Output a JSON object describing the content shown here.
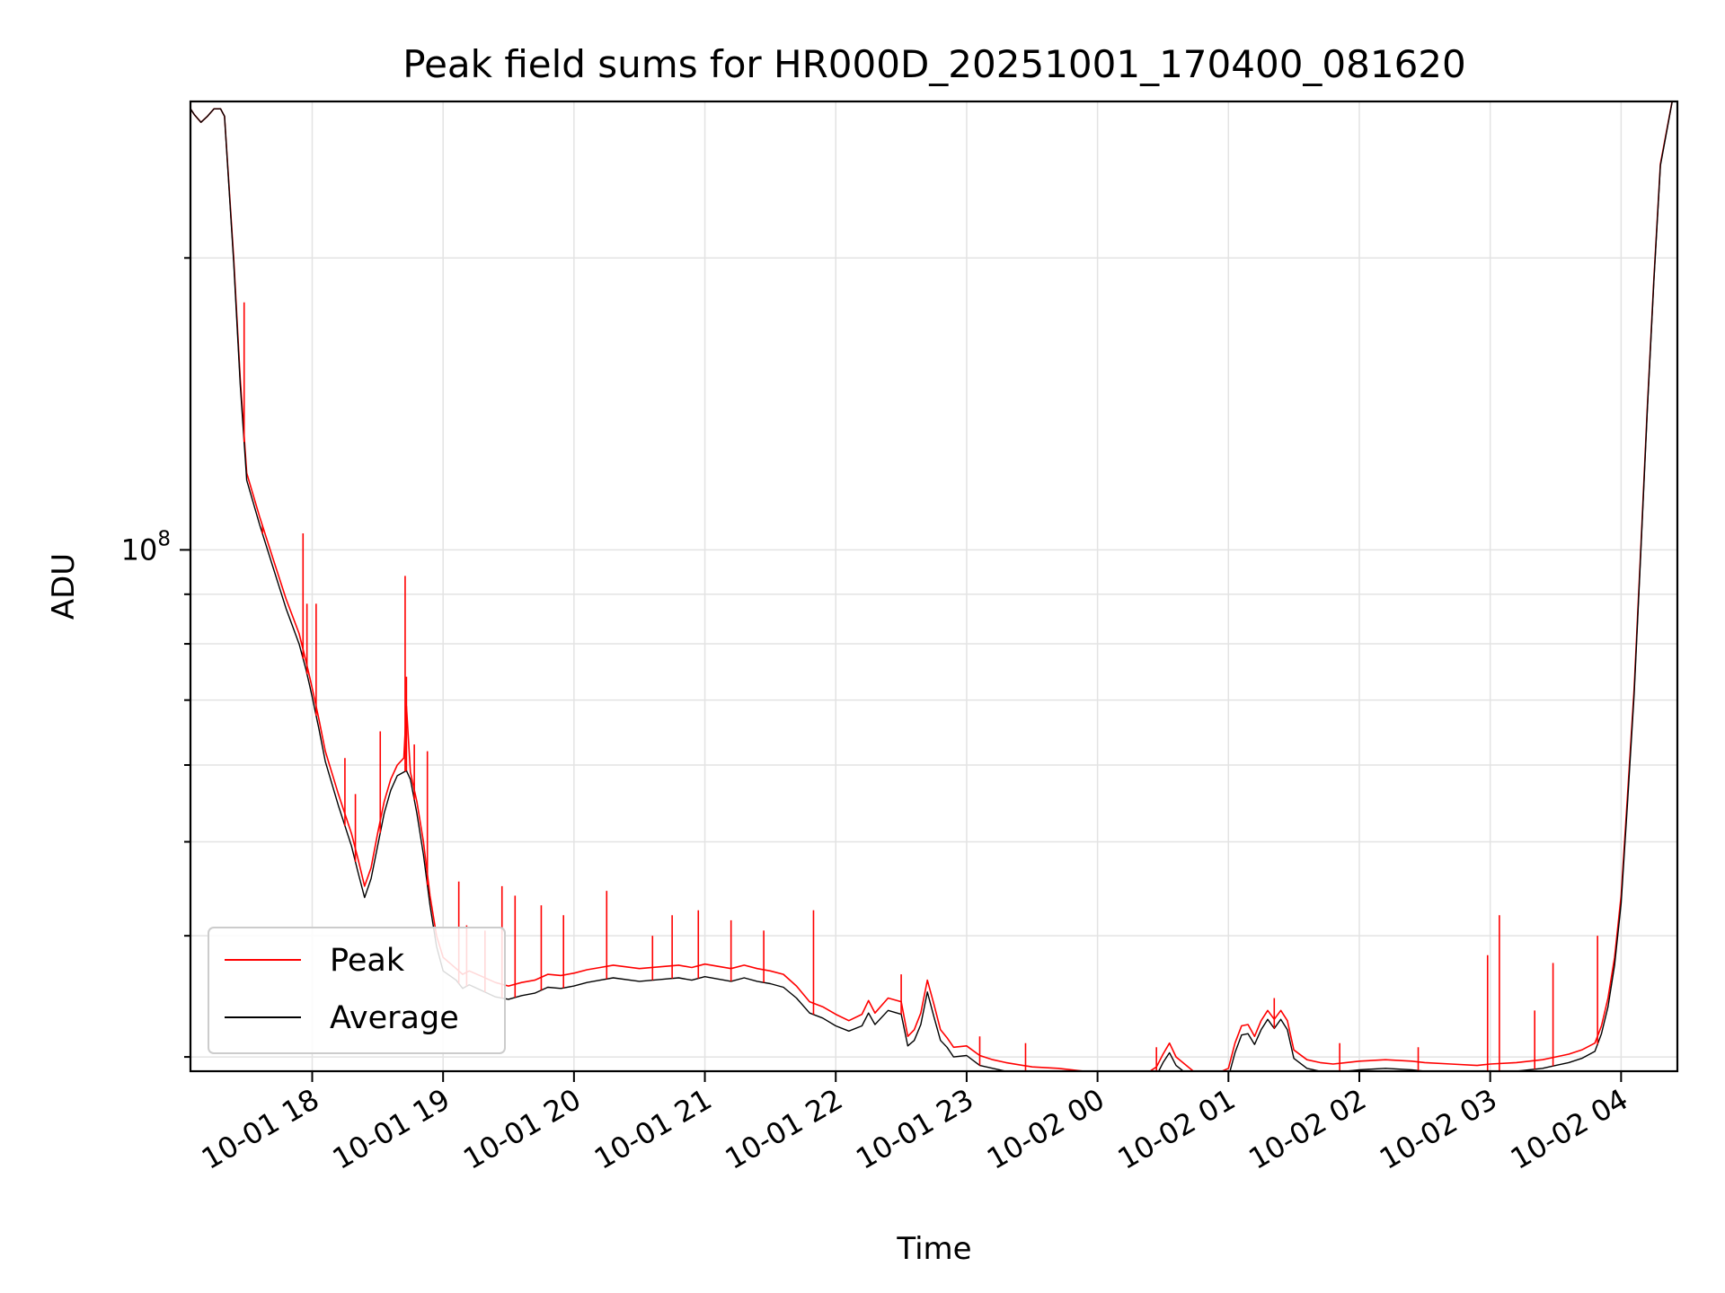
{
  "chart_data": {
    "type": "line",
    "title": "Peak field sums for HR000D_20251001_170400_081620",
    "xlabel": "Time",
    "ylabel": "ADU",
    "yscale": "log",
    "grid": true,
    "legend_position": "lower-left",
    "xlim": [
      17.07,
      28.43
    ],
    "ylim": [
      29000000,
      290000000
    ],
    "x_unit": "hours since 2025-10-01 00:00",
    "x_ticks": [
      {
        "x": 18,
        "label": "10-01 18"
      },
      {
        "x": 19,
        "label": "10-01 19"
      },
      {
        "x": 20,
        "label": "10-01 20"
      },
      {
        "x": 21,
        "label": "10-01 21"
      },
      {
        "x": 22,
        "label": "10-01 22"
      },
      {
        "x": 23,
        "label": "10-01 23"
      },
      {
        "x": 24,
        "label": "10-02 00"
      },
      {
        "x": 25,
        "label": "10-02 01"
      },
      {
        "x": 26,
        "label": "10-02 02"
      },
      {
        "x": 27,
        "label": "10-02 03"
      },
      {
        "x": 28,
        "label": "10-02 04"
      }
    ],
    "y_major_tick": {
      "value": 100000000,
      "base": "10",
      "exp": "8"
    },
    "series": [
      {
        "name": "Peak",
        "color": "#ff0000",
        "x": [
          17.07,
          17.1,
          17.15,
          17.2,
          17.25,
          17.3,
          17.33,
          17.4,
          17.45,
          17.5,
          17.6,
          17.7,
          17.8,
          17.9,
          17.95,
          17.98,
          18.0,
          18.05,
          18.1,
          18.2,
          18.3,
          18.35,
          18.4,
          18.45,
          18.5,
          18.55,
          18.6,
          18.65,
          18.7,
          18.72,
          18.75,
          18.8,
          18.85,
          18.9,
          18.95,
          19.0,
          19.1,
          19.15,
          19.2,
          19.3,
          19.4,
          19.5,
          19.6,
          19.7,
          19.8,
          19.9,
          20.0,
          20.1,
          20.2,
          20.3,
          20.5,
          20.7,
          20.8,
          20.9,
          21.0,
          21.2,
          21.3,
          21.4,
          21.5,
          21.6,
          21.7,
          21.8,
          21.9,
          22.0,
          22.1,
          22.2,
          22.25,
          22.3,
          22.4,
          22.5,
          22.55,
          22.6,
          22.65,
          22.7,
          22.75,
          22.8,
          22.85,
          22.9,
          23.0,
          23.1,
          23.2,
          23.3,
          23.5,
          23.7,
          23.9,
          24.1,
          24.2,
          24.3,
          24.4,
          24.45,
          24.5,
          24.55,
          24.6,
          24.8,
          24.9,
          25.0,
          25.05,
          25.1,
          25.15,
          25.2,
          25.25,
          25.3,
          25.35,
          25.4,
          25.45,
          25.5,
          25.6,
          25.7,
          25.8,
          25.9,
          26.0,
          26.2,
          26.4,
          26.5,
          26.7,
          26.9,
          27.0,
          27.2,
          27.4,
          27.5,
          27.6,
          27.7,
          27.8,
          27.85,
          27.9,
          27.95,
          28.0,
          28.05,
          28.1,
          28.15,
          28.2,
          28.25,
          28.3,
          28.43
        ],
        "values": [
          285000000,
          281000000,
          276000000,
          280000000,
          285000000,
          285000000,
          280000000,
          200000000,
          150000000,
          120000000,
          108000000,
          98000000,
          89000000,
          82000000,
          77000000,
          74000000,
          72000000,
          67000000,
          62000000,
          56000000,
          51000000,
          48000000,
          45000000,
          47000000,
          51000000,
          55000000,
          58000000,
          60000000,
          61000000,
          69000000,
          59000000,
          55000000,
          50000000,
          44000000,
          40000000,
          38000000,
          37000000,
          36500000,
          36800000,
          36300000,
          35800000,
          35500000,
          35800000,
          36000000,
          36500000,
          36400000,
          36600000,
          36900000,
          37100000,
          37300000,
          37000000,
          37200000,
          37300000,
          37100000,
          37400000,
          37000000,
          37300000,
          37000000,
          36800000,
          36500000,
          35500000,
          34200000,
          33800000,
          33200000,
          32700000,
          33200000,
          34300000,
          33300000,
          34500000,
          34200000,
          31500000,
          32000000,
          33300000,
          36000000,
          34000000,
          32000000,
          31400000,
          30700000,
          30800000,
          30100000,
          29800000,
          29600000,
          29300000,
          29200000,
          29000000,
          28800000,
          28700000,
          28900000,
          29000000,
          29300000,
          30200000,
          31000000,
          30000000,
          28500000,
          28800000,
          29200000,
          31000000,
          32300000,
          32400000,
          31500000,
          32700000,
          33500000,
          32800000,
          33500000,
          32700000,
          30500000,
          29800000,
          29600000,
          29500000,
          29600000,
          29700000,
          29800000,
          29700000,
          29600000,
          29500000,
          29400000,
          29500000,
          29600000,
          29800000,
          30000000,
          30200000,
          30500000,
          31000000,
          32300000,
          34500000,
          38000000,
          44000000,
          56000000,
          72000000,
          100000000,
          140000000,
          190000000,
          250000000,
          310000000
        ]
      },
      {
        "name": "Average",
        "color": "#000000",
        "x": [
          17.07,
          17.1,
          17.15,
          17.2,
          17.25,
          17.3,
          17.33,
          17.4,
          17.45,
          17.5,
          17.6,
          17.7,
          17.8,
          17.9,
          17.95,
          17.98,
          18.0,
          18.05,
          18.1,
          18.2,
          18.3,
          18.35,
          18.4,
          18.45,
          18.5,
          18.55,
          18.6,
          18.65,
          18.7,
          18.72,
          18.75,
          18.8,
          18.85,
          18.9,
          18.95,
          19.0,
          19.1,
          19.15,
          19.2,
          19.3,
          19.4,
          19.5,
          19.6,
          19.7,
          19.8,
          19.9,
          20.0,
          20.1,
          20.2,
          20.3,
          20.5,
          20.7,
          20.8,
          20.9,
          21.0,
          21.2,
          21.3,
          21.4,
          21.5,
          21.6,
          21.7,
          21.8,
          21.9,
          22.0,
          22.1,
          22.2,
          22.25,
          22.3,
          22.4,
          22.5,
          22.55,
          22.6,
          22.65,
          22.7,
          22.75,
          22.8,
          22.85,
          22.9,
          23.0,
          23.1,
          23.2,
          23.3,
          23.5,
          23.7,
          23.9,
          24.1,
          24.2,
          24.3,
          24.4,
          24.45,
          24.5,
          24.55,
          24.6,
          24.8,
          24.9,
          25.0,
          25.05,
          25.1,
          25.15,
          25.2,
          25.25,
          25.3,
          25.35,
          25.4,
          25.45,
          25.5,
          25.6,
          25.7,
          25.8,
          25.9,
          26.0,
          26.2,
          26.4,
          26.5,
          26.7,
          26.9,
          27.0,
          27.2,
          27.4,
          27.5,
          27.6,
          27.7,
          27.8,
          27.85,
          27.9,
          27.95,
          28.0,
          28.05,
          28.1,
          28.15,
          28.2,
          28.25,
          28.3,
          28.43
        ],
        "values": [
          285000000,
          281000000,
          276000000,
          280000000,
          285000000,
          285000000,
          280000000,
          198000000,
          148000000,
          118000000,
          106000000,
          96000000,
          87000000,
          80000000,
          75500000,
          72500000,
          70500000,
          65500000,
          60500000,
          54500000,
          49500000,
          46500000,
          43800000,
          45800000,
          49500000,
          53500000,
          56500000,
          58500000,
          59000000,
          59200000,
          58000000,
          53500000,
          48500000,
          43000000,
          39000000,
          36800000,
          36000000,
          35300000,
          35600000,
          35100000,
          34600000,
          34400000,
          34700000,
          34900000,
          35400000,
          35300000,
          35500000,
          35800000,
          36000000,
          36200000,
          35900000,
          36100000,
          36200000,
          36000000,
          36300000,
          35900000,
          36200000,
          35900000,
          35700000,
          35400000,
          34500000,
          33300000,
          32900000,
          32300000,
          31900000,
          32300000,
          33300000,
          32400000,
          33500000,
          33200000,
          30800000,
          31200000,
          32400000,
          35000000,
          33000000,
          31200000,
          30700000,
          30000000,
          30100000,
          29400000,
          29200000,
          29000000,
          28700000,
          28600000,
          28400000,
          28200000,
          28100000,
          28300000,
          28400000,
          28700000,
          29600000,
          30300000,
          29400000,
          28000000,
          28200000,
          28600000,
          30300000,
          31600000,
          31700000,
          30900000,
          32000000,
          32800000,
          32100000,
          32800000,
          32000000,
          29900000,
          29200000,
          29000000,
          28900000,
          29000000,
          29100000,
          29200000,
          29100000,
          29000000,
          28900000,
          28800000,
          28900000,
          29000000,
          29200000,
          29400000,
          29600000,
          29900000,
          30400000,
          31700000,
          33800000,
          37300000,
          43200000,
          55000000,
          71000000,
          99000000,
          139000000,
          189000000,
          249000000,
          310000000
        ]
      }
    ],
    "spikes": [
      {
        "x": 17.48,
        "top": 180000000
      },
      {
        "x": 17.62,
        "top": 106000000
      },
      {
        "x": 17.93,
        "top": 104000000
      },
      {
        "x": 17.96,
        "top": 88000000
      },
      {
        "x": 18.03,
        "top": 88000000
      },
      {
        "x": 18.25,
        "top": 61000000
      },
      {
        "x": 18.33,
        "top": 56000000
      },
      {
        "x": 18.52,
        "top": 65000000
      },
      {
        "x": 18.71,
        "top": 94000000
      },
      {
        "x": 18.72,
        "top": 74000000
      },
      {
        "x": 18.78,
        "top": 63000000
      },
      {
        "x": 18.88,
        "top": 62000000
      },
      {
        "x": 19.12,
        "top": 45500000
      },
      {
        "x": 19.18,
        "top": 41000000
      },
      {
        "x": 19.32,
        "top": 40500000
      },
      {
        "x": 19.45,
        "top": 45000000
      },
      {
        "x": 19.55,
        "top": 44000000
      },
      {
        "x": 19.75,
        "top": 43000000
      },
      {
        "x": 19.92,
        "top": 42000000
      },
      {
        "x": 20.25,
        "top": 44500000
      },
      {
        "x": 20.6,
        "top": 40000000
      },
      {
        "x": 20.75,
        "top": 42000000
      },
      {
        "x": 20.95,
        "top": 42500000
      },
      {
        "x": 21.2,
        "top": 41500000
      },
      {
        "x": 21.45,
        "top": 40500000
      },
      {
        "x": 21.83,
        "top": 42500000
      },
      {
        "x": 22.5,
        "top": 36500000
      },
      {
        "x": 23.1,
        "top": 31500000
      },
      {
        "x": 23.45,
        "top": 31000000
      },
      {
        "x": 24.45,
        "top": 30700000
      },
      {
        "x": 25.35,
        "top": 34500000
      },
      {
        "x": 25.85,
        "top": 31000000
      },
      {
        "x": 26.45,
        "top": 30700000
      },
      {
        "x": 26.98,
        "top": 38200000
      },
      {
        "x": 27.07,
        "top": 42000000
      },
      {
        "x": 27.34,
        "top": 33500000
      },
      {
        "x": 27.48,
        "top": 37500000
      },
      {
        "x": 27.82,
        "top": 40000000
      }
    ],
    "legend": [
      {
        "label": "Peak",
        "color": "#ff0000"
      },
      {
        "label": "Average",
        "color": "#000000"
      }
    ]
  }
}
